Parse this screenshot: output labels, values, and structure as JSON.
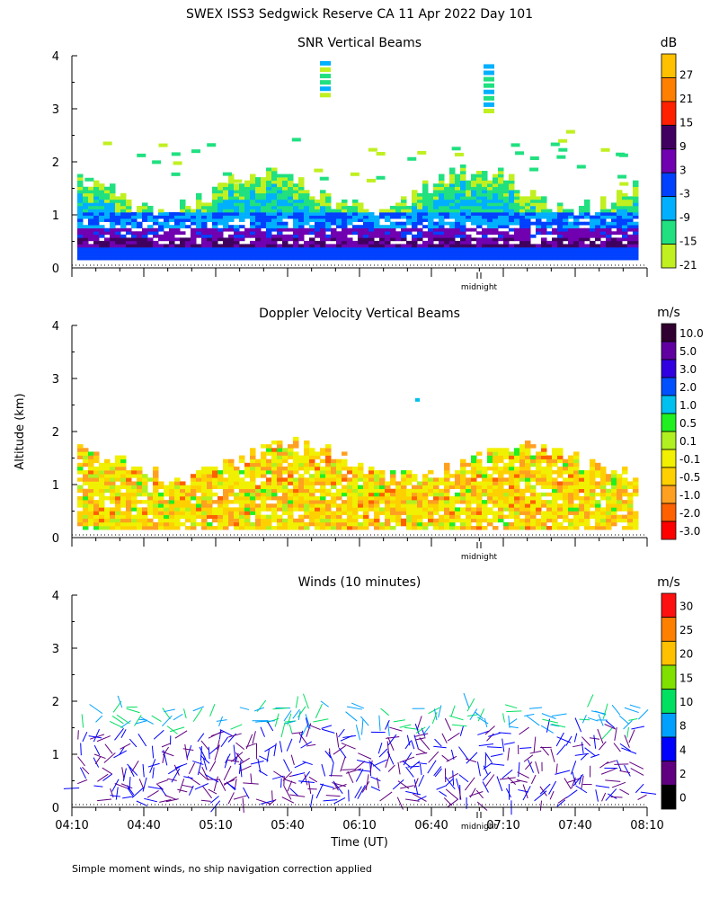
{
  "page": {
    "title": "SWEX ISS3 Sedgwick Reserve CA  11 Apr 2022 Day 101",
    "y_axis_label": "Altitude (km)",
    "x_axis_label": "Time (UT)",
    "footnote": "Simple moment winds, no ship navigation correction applied",
    "midnight_label": "midnight"
  },
  "chart_data": [
    {
      "type": "heatmap",
      "title": "SNR Vertical Beams",
      "colorbar_unit": "dB",
      "ylim": [
        0,
        4
      ],
      "yticks": [
        "0",
        "1",
        "2",
        "3",
        "4"
      ],
      "colorbar_levels": [
        "27",
        "21",
        "15",
        "9",
        "3",
        "-3",
        "-9",
        "-15",
        "-21"
      ],
      "colorbar_colors": [
        "#ffc000",
        "#ff8000",
        "#ff2000",
        "#400060",
        "#7000b0",
        "#0040ff",
        "#00b0ff",
        "#20e080",
        "#c0f020"
      ]
    },
    {
      "type": "heatmap",
      "title": "Doppler Velocity Vertical Beams",
      "colorbar_unit": "m/s",
      "ylim": [
        0,
        4
      ],
      "yticks": [
        "0",
        "1",
        "2",
        "3",
        "4"
      ],
      "colorbar_levels": [
        "10.0",
        "5.0",
        "3.0",
        "2.0",
        "1.0",
        "0.5",
        "0.1",
        "-0.1",
        "-0.5",
        "-1.0",
        "-2.0",
        "-3.0"
      ],
      "colorbar_colors": [
        "#300030",
        "#6000a0",
        "#3000e0",
        "#0050ff",
        "#00c0f0",
        "#20f020",
        "#b0f020",
        "#f0f000",
        "#ffd000",
        "#ffa020",
        "#ff6000",
        "#ff0000"
      ]
    },
    {
      "type": "scatter",
      "title": "Winds (10 minutes)",
      "colorbar_unit": "m/s",
      "ylim": [
        0,
        4
      ],
      "yticks": [
        "0",
        "1",
        "2",
        "3",
        "4"
      ],
      "x_ticks": [
        "04:10",
        "04:40",
        "05:10",
        "05:40",
        "06:10",
        "06:40",
        "07:10",
        "07:40",
        "08:10"
      ],
      "colorbar_levels": [
        "30",
        "25",
        "20",
        "15",
        "10",
        "8",
        "4",
        "2",
        "0"
      ],
      "colorbar_colors": [
        "#ff1010",
        "#ff8000",
        "#ffc000",
        "#80e000",
        "#00e060",
        "#00a0ff",
        "#0000ff",
        "#600080",
        "#000000"
      ]
    }
  ],
  "colors": {
    "axis": "#000000",
    "background": "#ffffff"
  }
}
